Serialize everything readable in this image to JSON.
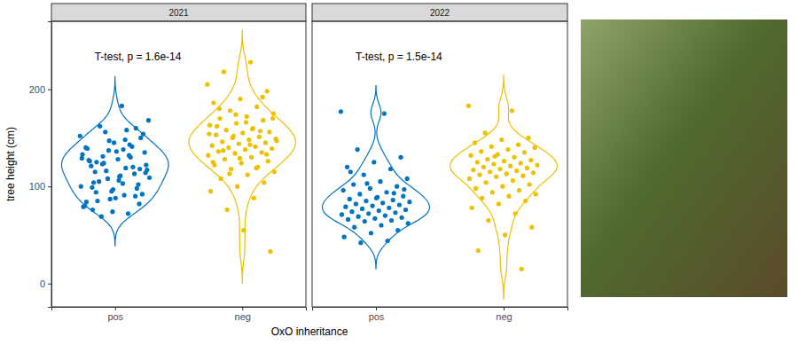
{
  "chart_data": {
    "type": "violin",
    "x_label": "OxO inheritance",
    "y_label": "tree height (cm)",
    "ylim": [
      -24,
      270
    ],
    "yticks": [
      0,
      100,
      200
    ],
    "grid": false,
    "colors": [
      "#0073C2",
      "#EFC000"
    ],
    "panels": [
      {
        "title": "2021",
        "annotation": "T-test, p = 1.6e-14",
        "categories": [
          "pos",
          "neg"
        ],
        "values": [
          [
            152,
            138,
            125,
            118,
            97,
            84,
            143,
            131,
            122,
            110,
            76,
            160,
            147,
            133,
            119,
            105,
            92,
            88,
            127,
            141,
            156,
            168,
            183,
            115,
            102,
            95,
            80,
            72,
            69,
            135,
            128,
            121,
            113,
            108,
            100,
            91,
            85,
            150,
            145,
            139,
            130,
            124,
            117,
            111,
            104,
            98,
            87,
            79,
            158,
            162,
            154,
            136,
            126,
            120,
            116,
            109,
            103,
            94,
            82,
            74,
            140,
            132,
            123,
            114,
            106,
            99,
            90,
            137,
            129,
            148
          ],
          [
            205,
            228,
            218,
            198,
            190,
            186,
            182,
            178,
            175,
            172,
            170,
            168,
            165,
            163,
            160,
            158,
            156,
            155,
            153,
            151,
            150,
            149,
            148,
            146,
            145,
            144,
            142,
            141,
            140,
            139,
            138,
            136,
            135,
            134,
            132,
            130,
            128,
            126,
            124,
            122,
            120,
            118,
            115,
            112,
            108,
            104,
            100,
            95,
            88,
            76,
            33,
            55,
            162,
            157,
            152,
            147,
            143,
            137,
            133,
            129,
            125,
            119,
            113,
            170,
            166,
            180,
            192,
            174,
            154,
            159
          ]
        ]
      },
      {
        "title": "2022",
        "annotation": "T-test, p = 1.5e-14",
        "categories": [
          "pos",
          "neg"
        ],
        "values": [
          [
            177,
            175,
            138,
            130,
            125,
            120,
            118,
            112,
            108,
            105,
            102,
            100,
            98,
            96,
            94,
            92,
            90,
            88,
            87,
            86,
            85,
            84,
            83,
            82,
            81,
            80,
            79,
            78,
            77,
            76,
            75,
            74,
            73,
            72,
            71,
            70,
            69,
            68,
            67,
            66,
            65,
            64,
            62,
            60,
            58,
            55,
            52,
            48,
            44,
            42,
            97,
            89,
            115,
            93,
            103
          ],
          [
            183,
            178,
            155,
            150,
            148,
            145,
            143,
            141,
            140,
            138,
            136,
            135,
            133,
            132,
            130,
            128,
            127,
            126,
            125,
            124,
            123,
            122,
            121,
            120,
            119,
            118,
            117,
            116,
            115,
            114,
            113,
            112,
            111,
            110,
            108,
            106,
            104,
            102,
            100,
            98,
            96,
            94,
            92,
            90,
            88,
            85,
            82,
            78,
            72,
            65,
            58,
            50,
            34,
            15,
            131
          ]
        ]
      }
    ]
  }
}
